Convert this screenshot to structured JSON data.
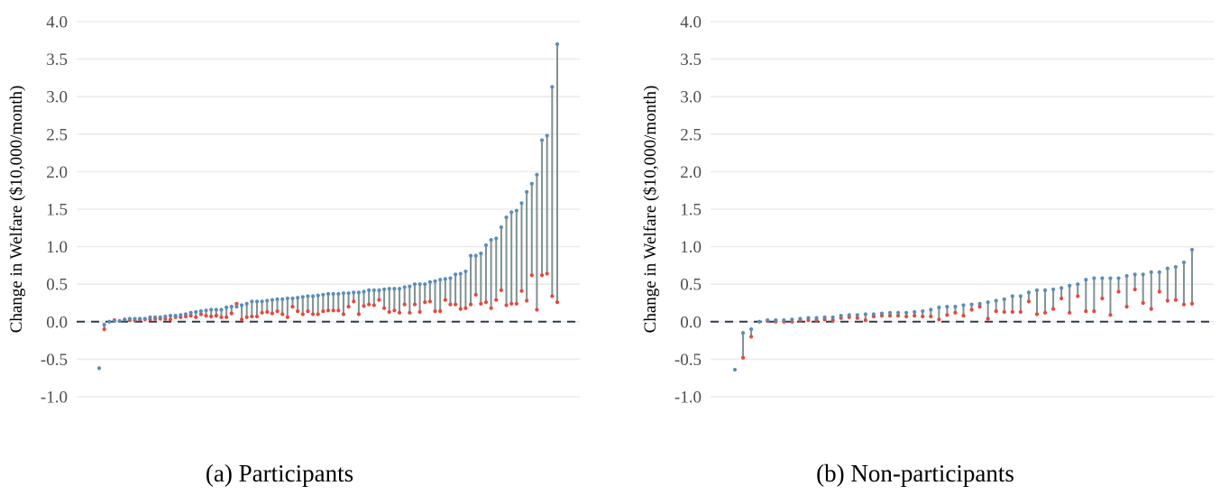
{
  "chart_data": [
    {
      "type": "dumbbell",
      "caption": "(a) Participants",
      "ylabel": "Change in Welfare ($10,000/month)",
      "ylim": [
        -1.0,
        4.0
      ],
      "yticks": [
        "-1.0",
        "-0.5",
        "0.0",
        "0.5",
        "1.0",
        "1.5",
        "2.0",
        "2.5",
        "3.0",
        "3.5",
        "4.0"
      ],
      "grid": true,
      "reference_line": 0.0,
      "series": [
        {
          "color": "#5b8db8",
          "values": [
            -0.62,
            -0.04,
            0.0,
            0.01,
            0.01,
            0.03,
            0.04,
            0.04,
            0.04,
            0.04,
            0.06,
            0.06,
            0.06,
            0.07,
            0.08,
            0.08,
            0.09,
            0.1,
            0.12,
            0.13,
            0.14,
            0.15,
            0.16,
            0.16,
            0.16,
            0.19,
            0.2,
            0.2,
            0.22,
            0.24,
            0.27,
            0.27,
            0.27,
            0.28,
            0.29,
            0.3,
            0.3,
            0.31,
            0.31,
            0.32,
            0.33,
            0.34,
            0.34,
            0.35,
            0.36,
            0.37,
            0.37,
            0.37,
            0.38,
            0.38,
            0.39,
            0.39,
            0.4,
            0.42,
            0.42,
            0.42,
            0.43,
            0.44,
            0.44,
            0.44,
            0.46,
            0.47,
            0.5,
            0.5,
            0.5,
            0.53,
            0.54,
            0.56,
            0.57,
            0.58,
            0.63,
            0.64,
            0.67,
            0.88,
            0.88,
            0.91,
            1.02,
            1.09,
            1.11,
            1.26,
            1.39,
            1.46,
            1.48,
            1.58,
            1.73,
            1.84,
            1.96,
            2.42,
            2.48,
            3.13,
            3.7
          ]
        },
        {
          "color": "#e8473c",
          "values": [
            null,
            -0.1,
            0.0,
            0.02,
            0.01,
            0.03,
            0.02,
            0.02,
            0.03,
            0.03,
            0.03,
            0.04,
            0.04,
            0.04,
            0.03,
            0.06,
            0.06,
            0.07,
            0.08,
            0.06,
            0.1,
            0.08,
            0.07,
            0.08,
            0.06,
            0.06,
            0.11,
            0.24,
            0.03,
            0.06,
            0.07,
            0.07,
            0.12,
            0.13,
            0.11,
            0.14,
            0.1,
            0.06,
            0.2,
            0.14,
            0.1,
            0.14,
            0.1,
            0.1,
            0.14,
            0.15,
            0.15,
            0.15,
            0.1,
            0.2,
            0.27,
            0.1,
            0.21,
            0.23,
            0.22,
            0.29,
            0.18,
            0.13,
            0.15,
            0.12,
            0.23,
            0.12,
            0.23,
            0.13,
            0.26,
            0.27,
            0.14,
            0.14,
            0.29,
            0.23,
            0.23,
            0.17,
            0.18,
            0.23,
            0.36,
            0.24,
            0.26,
            0.18,
            0.29,
            0.42,
            0.22,
            0.24,
            0.24,
            0.41,
            0.28,
            0.62,
            0.16,
            0.62,
            0.64,
            0.34,
            0.26
          ]
        }
      ],
      "stem_color": "#7f9191",
      "reference_line_color": "#2e3b4e"
    },
    {
      "type": "dumbbell",
      "caption": "(b) Non-participants",
      "ylabel": "Change in Welfare ($10,000/month)",
      "ylim": [
        -1.0,
        4.0
      ],
      "yticks": [
        "-1.0",
        "-0.5",
        "0.0",
        "0.5",
        "1.0",
        "1.5",
        "2.0",
        "2.5",
        "3.0",
        "3.5",
        "4.0"
      ],
      "grid": true,
      "reference_line": 0.0,
      "series": [
        {
          "color": "#5b8db8",
          "values": [
            -0.64,
            -0.15,
            -0.1,
            0.0,
            0.02,
            0.02,
            0.02,
            0.03,
            0.04,
            0.05,
            0.05,
            0.06,
            0.06,
            0.08,
            0.09,
            0.09,
            0.1,
            0.1,
            0.11,
            0.12,
            0.12,
            0.12,
            0.13,
            0.14,
            0.16,
            0.19,
            0.2,
            0.2,
            0.22,
            0.23,
            0.24,
            0.26,
            0.28,
            0.3,
            0.34,
            0.34,
            0.39,
            0.42,
            0.42,
            0.43,
            0.45,
            0.48,
            0.5,
            0.56,
            0.58,
            0.58,
            0.58,
            0.58,
            0.61,
            0.63,
            0.63,
            0.66,
            0.66,
            0.71,
            0.73,
            0.79,
            0.96
          ]
        },
        {
          "color": "#e8473c",
          "values": [
            null,
            -0.48,
            -0.2,
            0.0,
            0.01,
            0.0,
            0.0,
            0.0,
            0.02,
            0.02,
            0.02,
            0.03,
            0.02,
            0.05,
            0.06,
            0.05,
            0.02,
            0.07,
            0.08,
            0.08,
            0.08,
            0.07,
            0.08,
            0.07,
            0.07,
            0.03,
            0.09,
            0.12,
            0.08,
            0.16,
            0.2,
            0.04,
            0.14,
            0.13,
            0.13,
            0.13,
            0.27,
            0.1,
            0.12,
            0.17,
            0.31,
            0.12,
            0.34,
            0.14,
            0.14,
            0.31,
            0.09,
            0.4,
            0.2,
            0.43,
            0.25,
            0.17,
            0.4,
            0.28,
            0.29,
            0.23,
            0.24
          ]
        }
      ],
      "stem_color": "#7f9191",
      "reference_line_color": "#2e3b4e"
    }
  ]
}
